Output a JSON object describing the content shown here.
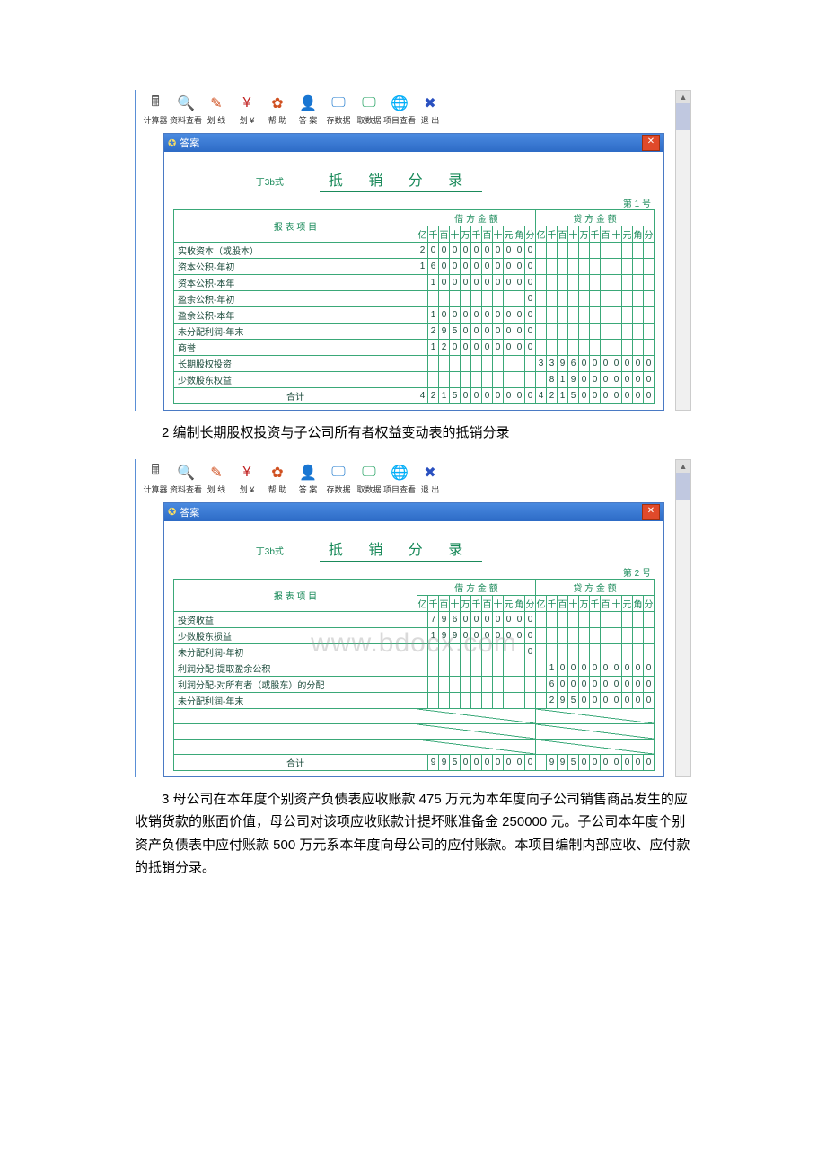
{
  "toolbar": [
    {
      "name": "calculator",
      "label": "计算器",
      "glyph": "🖩",
      "color": "#555"
    },
    {
      "name": "view-data",
      "label": "资料查看",
      "glyph": "🔍",
      "color": "#2a6ad0"
    },
    {
      "name": "scratch",
      "label": "划 线",
      "glyph": "✎",
      "color": "#d05020"
    },
    {
      "name": "yen",
      "label": "划 ¥",
      "glyph": "¥",
      "color": "#c02020"
    },
    {
      "name": "help",
      "label": "帮 助",
      "glyph": "✿",
      "color": "#d05020"
    },
    {
      "name": "answer",
      "label": "答 案",
      "glyph": "👤",
      "color": "#d0b020"
    },
    {
      "name": "save",
      "label": "存数据",
      "glyph": "🖵",
      "color": "#2a80d0"
    },
    {
      "name": "load",
      "label": "取数据",
      "glyph": "🖵",
      "color": "#20a060"
    },
    {
      "name": "project",
      "label": "项目查看",
      "glyph": "🌐",
      "color": "#2a6ad0"
    },
    {
      "name": "exit",
      "label": "退 出",
      "glyph": "✖",
      "color": "#2a50c0"
    }
  ],
  "window_title": "答案",
  "format_label": "丁3b式",
  "doc_title": "抵 销 分 录",
  "page1_num": "第  1  号",
  "page2_num": "第  2  号",
  "col_header_item": "报  表  项  目",
  "col_header_debit": "借 方 金 额",
  "col_header_credit": "贷 方 金 额",
  "digit_headers": [
    "亿",
    "千",
    "百",
    "十",
    "万",
    "千",
    "百",
    "十",
    "元",
    "角",
    "分"
  ],
  "sum_label": "合计",
  "watermark": "www.bdocx.com",
  "table1": {
    "rows": [
      {
        "item": "实收资本（或股本）",
        "debit": "20000000000",
        "credit": ""
      },
      {
        "item": "资本公积-年初",
        "debit": "16000000000",
        "credit": ""
      },
      {
        "item": "资本公积-本年",
        "debit": " 1000000000",
        "credit": ""
      },
      {
        "item": "盈余公积-年初",
        "debit": "          0",
        "credit": ""
      },
      {
        "item": "盈余公积-本年",
        "debit": " 1000000000",
        "credit": ""
      },
      {
        "item": "未分配利润-年末",
        "debit": " 2950000000",
        "credit": ""
      },
      {
        "item": "商誉",
        "debit": " 1200000000",
        "credit": ""
      },
      {
        "item": "长期股权投资",
        "debit": "",
        "credit": "33960000000"
      },
      {
        "item": "少数股东权益",
        "debit": "",
        "credit": " 8190000000"
      }
    ],
    "sum_debit": "¥42150000000",
    "sum_credit": "¥42150000000"
  },
  "text1": "2 编制长期股权投资与子公司所有者权益变动表的抵销分录",
  "table2": {
    "rows": [
      {
        "item": "投资收益",
        "debit": " 7960000000",
        "credit": ""
      },
      {
        "item": "少数股东损益",
        "debit": " 1990000000",
        "credit": ""
      },
      {
        "item": "未分配利润-年初",
        "debit": "          0",
        "credit": ""
      },
      {
        "item": "利润分配-提取盈余公积",
        "debit": "",
        "credit": " 1000000000"
      },
      {
        "item": "利润分配-对所有者（或股东）的分配",
        "debit": "",
        "credit": " 6000000000"
      },
      {
        "item": "未分配利润-年末",
        "debit": "",
        "credit": " 2950000000"
      }
    ],
    "empty_rows": 3,
    "sum_debit": "¥ 9950000000",
    "sum_credit": "¥ 9950000000"
  },
  "text2": "3 母公司在本年度个别资产负债表应收账款 475 万元为本年度向子公司销售商品发生的应收销货款的账面价值，母公司对该项应收账款计提坏账准备金 250000 元。子公司本年度个别资产负债表中应付账款 500 万元系本年度向母公司的应付账款。本项目编制内部应收、应付款的抵销分录。"
}
